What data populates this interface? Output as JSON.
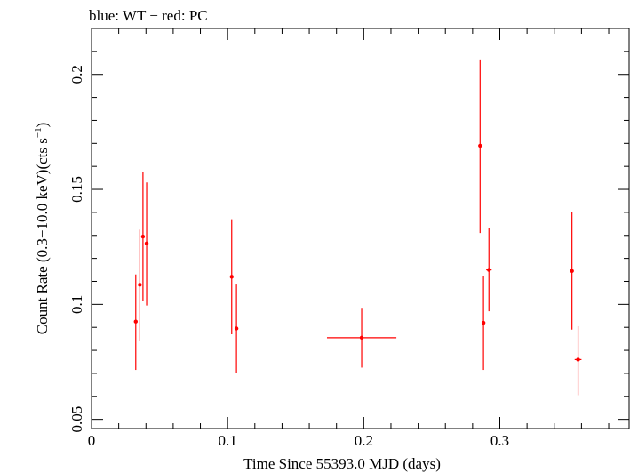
{
  "title": "blue: WT − red: PC",
  "chart_data": {
    "type": "scatter",
    "title": "blue: WT − red: PC",
    "xlabel": "Time Since 55393.0 MJD (days)",
    "ylabel_main": "Count Rate (0.3−10.0 keV)(cts s",
    "ylabel_sup": "−1",
    "ylabel_close": ")",
    "xlim": [
      0.0,
      0.395
    ],
    "ylim": [
      0.046,
      0.22
    ],
    "xticks": [
      {
        "value": 0,
        "label": "0"
      },
      {
        "value": 0.1,
        "label": "0.1"
      },
      {
        "value": 0.2,
        "label": "0.2"
      },
      {
        "value": 0.3,
        "label": "0.3"
      }
    ],
    "yticks": [
      {
        "value": 0.05,
        "label": "0.05"
      },
      {
        "value": 0.1,
        "label": "0.1"
      },
      {
        "value": 0.15,
        "label": "0.15"
      },
      {
        "value": 0.2,
        "label": "0.2"
      }
    ],
    "series": [
      {
        "name": "PC",
        "color": "#ff0000",
        "points": [
          {
            "x": 0.0325,
            "y": 0.0925,
            "xerr": 0.001,
            "ylo": 0.0715,
            "yhi": 0.113
          },
          {
            "x": 0.0355,
            "y": 0.1085,
            "xerr": 0.001,
            "ylo": 0.084,
            "yhi": 0.1325
          },
          {
            "x": 0.0378,
            "y": 0.1295,
            "xerr": 0.001,
            "ylo": 0.1015,
            "yhi": 0.1575
          },
          {
            "x": 0.0405,
            "y": 0.1265,
            "xerr": 0.001,
            "ylo": 0.0995,
            "yhi": 0.153
          },
          {
            "x": 0.103,
            "y": 0.112,
            "xerr": 0.001,
            "ylo": 0.087,
            "yhi": 0.137
          },
          {
            "x": 0.1065,
            "y": 0.0895,
            "xerr": 0.001,
            "ylo": 0.07,
            "yhi": 0.109
          },
          {
            "x": 0.1985,
            "y": 0.0855,
            "xerr": 0.0255,
            "ylo": 0.0725,
            "yhi": 0.0985
          },
          {
            "x": 0.2855,
            "y": 0.169,
            "xerr": 0.001,
            "ylo": 0.131,
            "yhi": 0.2065
          },
          {
            "x": 0.288,
            "y": 0.092,
            "xerr": 0.001,
            "ylo": 0.0715,
            "yhi": 0.1125
          },
          {
            "x": 0.292,
            "y": 0.115,
            "xerr": 0.002,
            "ylo": 0.097,
            "yhi": 0.133
          },
          {
            "x": 0.353,
            "y": 0.1145,
            "xerr": 0.001,
            "ylo": 0.089,
            "yhi": 0.14
          },
          {
            "x": 0.3575,
            "y": 0.076,
            "xerr": 0.0025,
            "ylo": 0.0605,
            "yhi": 0.0905
          }
        ]
      }
    ],
    "grid": false
  }
}
